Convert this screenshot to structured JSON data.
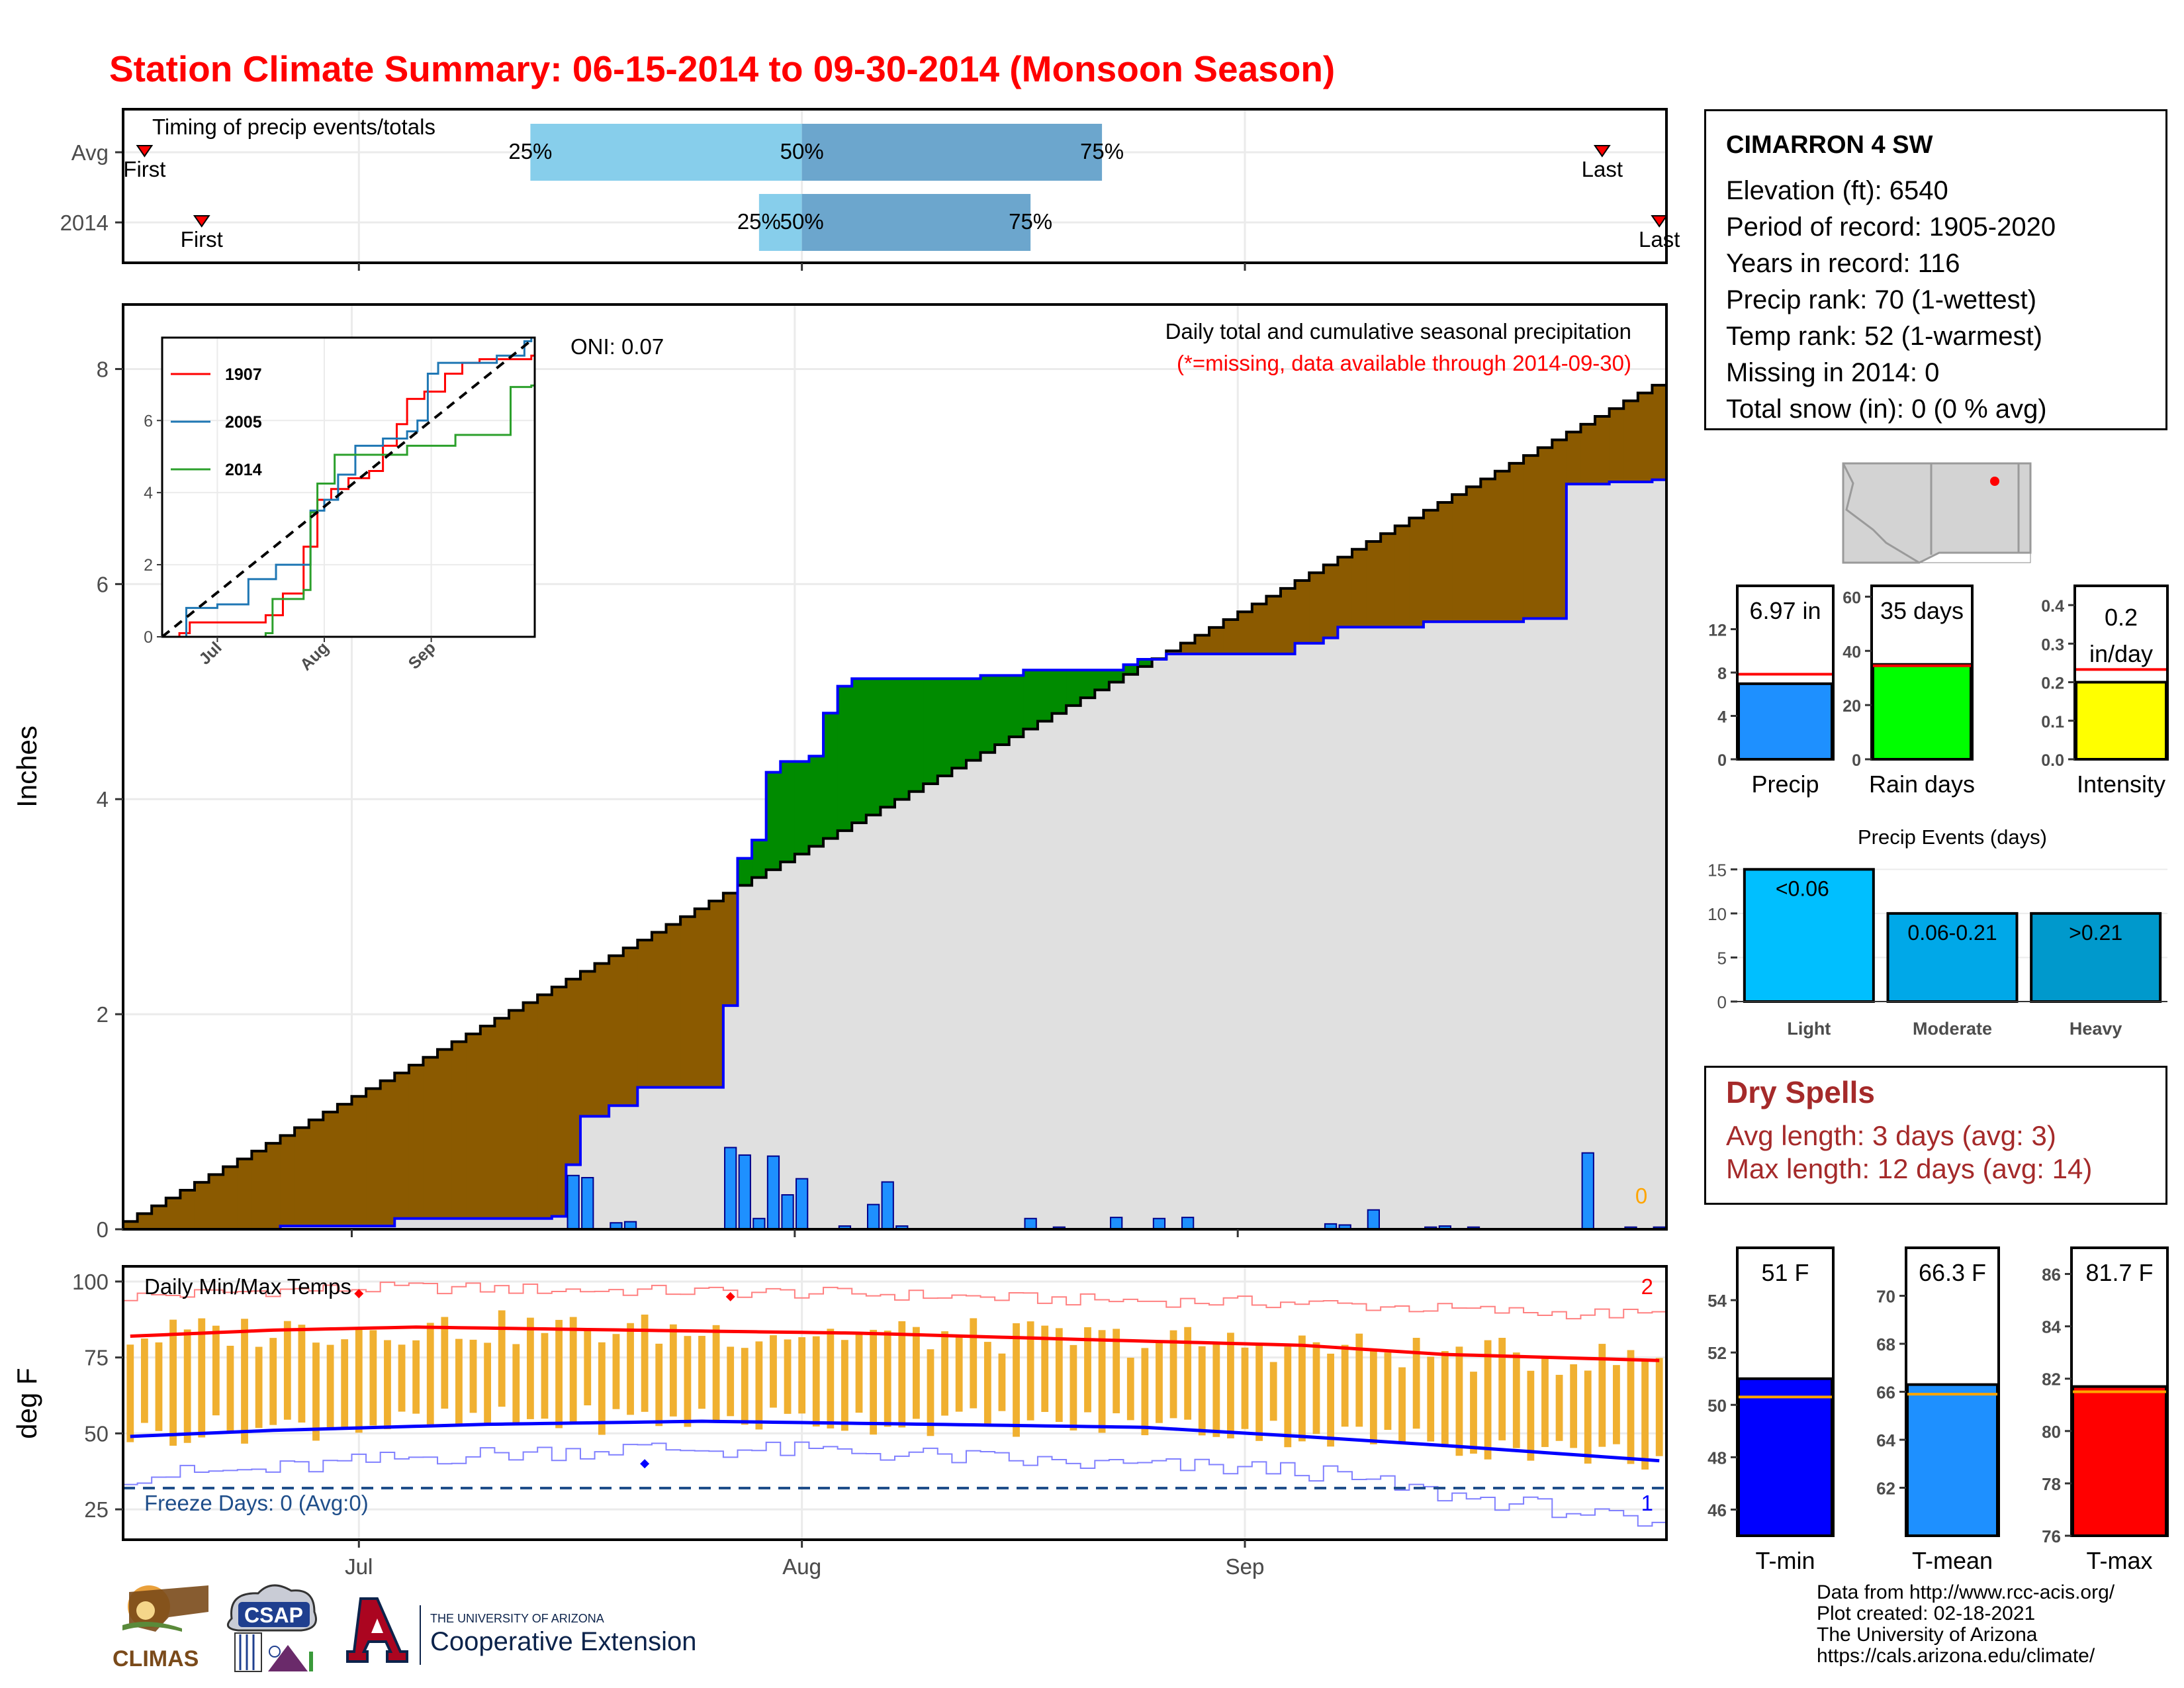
{
  "title": "Station Climate Summary: 06-15-2014 to 09-30-2014 (Monsoon Season)",
  "station": {
    "name": "CIMARRON 4 SW",
    "lines": [
      "Elevation (ft): 6540",
      "Period of record: 1905-2020",
      "Years in record: 116",
      "Precip rank: 70 (1-wettest)",
      "Temp rank: 52 (1-warmest)",
      "Missing in 2014: 0",
      "Total snow (in): 0 (0 % avg)"
    ]
  },
  "dry_spells": {
    "title": "Dry Spells",
    "avg": "Avg length: 3 days (avg: 3)",
    "max": "Max length: 12 days (avg: 14)"
  },
  "credits": [
    "Data from http://www.rcc-acis.org/",
    "Plot created: 02-18-2021",
    "The University of Arizona",
    "https://cals.arizona.edu/climate/"
  ],
  "logos": {
    "climas": "CLIMAS",
    "csap": "CSAP",
    "ua_small": "THE UNIVERSITY OF ARIZONA",
    "ua_ext": "Cooperative Extension"
  },
  "colors": {
    "deficit": "#8B5A00",
    "surplus": "#008B00",
    "bar": "#1E90FF",
    "light_blue": "#87CEEB",
    "mid_blue": "#6CA6CD",
    "temp_bar": "#F0B030",
    "tmax": "#FF0000",
    "tmin": "#0000FF"
  },
  "chart_data": [
    {
      "id": "timing",
      "type": "bar",
      "title": "Timing of precip events/totals",
      "rows": [
        "Avg",
        "2014"
      ],
      "x_range": [
        "06-15",
        "09-30"
      ],
      "avg": {
        "first": "06-16",
        "last": "09-26",
        "p25": "07-13",
        "p50": "08-01",
        "p75": "08-22"
      },
      "y2014": {
        "first": "06-20",
        "last": "09-30",
        "p25": "07-29",
        "p50": "08-01",
        "p75": "08-17"
      },
      "labels": {
        "first": "First",
        "last": "Last",
        "p25": "25%",
        "p50": "50%",
        "p75": "75%"
      }
    },
    {
      "id": "cumulative",
      "type": "area",
      "ylabel": "Inches",
      "ylim": [
        0,
        8.6
      ],
      "yticks": [
        0,
        2,
        4,
        6,
        8
      ],
      "xticks": [
        "Jul",
        "Aug",
        "Sep"
      ],
      "xtick_dates": [
        "07-01",
        "08-01",
        "09-01"
      ],
      "annotation_title": "Daily total and cumulative seasonal precipitation",
      "annotation_missing": "(*=missing, data available through 2014-09-30)",
      "oni": "ONI: 0.07",
      "missing_count": "0",
      "avg_final": 7.85,
      "obs_cumulative_keypoints": [
        [
          "06-15",
          0
        ],
        [
          "06-26",
          0.03
        ],
        [
          "07-04",
          0.1
        ],
        [
          "07-15",
          0.12
        ],
        [
          "07-16",
          0.6
        ],
        [
          "07-17",
          1.05
        ],
        [
          "07-19",
          1.15
        ],
        [
          "07-21",
          1.32
        ],
        [
          "07-26",
          1.32
        ],
        [
          "07-27",
          2.08
        ],
        [
          "07-28",
          3.45
        ],
        [
          "07-29",
          3.62
        ],
        [
          "07-30",
          4.25
        ],
        [
          "07-31",
          4.35
        ],
        [
          "08-02",
          4.4
        ],
        [
          "08-03",
          4.8
        ],
        [
          "08-04",
          5.05
        ],
        [
          "08-05",
          5.12
        ],
        [
          "08-14",
          5.15
        ],
        [
          "08-17",
          5.2
        ],
        [
          "08-24",
          5.25
        ],
        [
          "08-25",
          5.3
        ],
        [
          "08-27",
          5.35
        ],
        [
          "09-05",
          5.45
        ],
        [
          "09-07",
          5.5
        ],
        [
          "09-08",
          5.6
        ],
        [
          "09-14",
          5.65
        ],
        [
          "09-21",
          5.68
        ],
        [
          "09-24",
          6.93
        ],
        [
          "09-27",
          6.95
        ],
        [
          "09-30",
          6.97
        ]
      ],
      "daily_precip": [
        [
          "07-16",
          0.5
        ],
        [
          "07-17",
          0.48
        ],
        [
          "07-19",
          0.06
        ],
        [
          "07-20",
          0.07
        ],
        [
          "07-27",
          0.76
        ],
        [
          "07-28",
          0.69
        ],
        [
          "07-29",
          0.1
        ],
        [
          "07-30",
          0.68
        ],
        [
          "07-31",
          0.32
        ],
        [
          "08-01",
          0.47
        ],
        [
          "08-04",
          0.03
        ],
        [
          "08-06",
          0.23
        ],
        [
          "08-07",
          0.44
        ],
        [
          "08-08",
          0.03
        ],
        [
          "08-17",
          0.1
        ],
        [
          "08-19",
          0.02
        ],
        [
          "08-23",
          0.11
        ],
        [
          "08-26",
          0.1
        ],
        [
          "08-28",
          0.11
        ],
        [
          "09-07",
          0.05
        ],
        [
          "09-08",
          0.04
        ],
        [
          "09-10",
          0.18
        ],
        [
          "09-14",
          0.02
        ],
        [
          "09-15",
          0.03
        ],
        [
          "09-17",
          0.02
        ],
        [
          "09-25",
          0.71
        ],
        [
          "09-28",
          0.02
        ],
        [
          "09-30",
          0.02
        ]
      ]
    },
    {
      "id": "inset",
      "type": "line",
      "ylim": [
        0,
        8.3
      ],
      "yticks": [
        0,
        2,
        4,
        6
      ],
      "xticks": [
        "Jul",
        "Aug",
        "Sep"
      ],
      "legend": [
        "1907",
        "2005",
        "2014"
      ],
      "series": [
        {
          "name": "1907",
          "color": "#FF0000",
          "keypoints": [
            [
              "06-15",
              0
            ],
            [
              "06-20",
              0.1
            ],
            [
              "06-23",
              0.4
            ],
            [
              "07-15",
              0.6
            ],
            [
              "07-20",
              1.2
            ],
            [
              "07-26",
              2.5
            ],
            [
              "07-30",
              3.8
            ],
            [
              "08-03",
              4.1
            ],
            [
              "08-08",
              4.4
            ],
            [
              "08-14",
              4.6
            ],
            [
              "08-18",
              5.3
            ],
            [
              "08-22",
              5.9
            ],
            [
              "08-25",
              6.6
            ],
            [
              "08-30",
              6.8
            ],
            [
              "09-05",
              7.3
            ],
            [
              "09-10",
              7.6
            ],
            [
              "09-15",
              7.7
            ],
            [
              "09-30",
              7.8
            ]
          ]
        },
        {
          "name": "2005",
          "color": "#1F77B4",
          "keypoints": [
            [
              "06-15",
              0
            ],
            [
              "06-22",
              0.8
            ],
            [
              "07-01",
              0.9
            ],
            [
              "07-08",
              0.9
            ],
            [
              "07-10",
              1.6
            ],
            [
              "07-16",
              1.6
            ],
            [
              "07-18",
              2.0
            ],
            [
              "07-26",
              2.0
            ],
            [
              "07-28",
              3.5
            ],
            [
              "08-01",
              3.8
            ],
            [
              "08-05",
              4.5
            ],
            [
              "08-10",
              5.3
            ],
            [
              "08-18",
              5.5
            ],
            [
              "08-25",
              5.7
            ],
            [
              "08-28",
              6.0
            ],
            [
              "08-31",
              7.3
            ],
            [
              "09-03",
              7.6
            ],
            [
              "09-20",
              7.8
            ],
            [
              "09-28",
              8.2
            ],
            [
              "09-30",
              8.3
            ]
          ]
        },
        {
          "name": "2014",
          "color": "#2CA02C",
          "keypoints": [
            [
              "06-15",
              0
            ],
            [
              "07-15",
              0.1
            ],
            [
              "07-17",
              1.05
            ],
            [
              "07-26",
              1.3
            ],
            [
              "07-28",
              3.45
            ],
            [
              "07-30",
              4.25
            ],
            [
              "08-04",
              5.05
            ],
            [
              "08-25",
              5.3
            ],
            [
              "09-08",
              5.6
            ],
            [
              "09-24",
              6.93
            ],
            [
              "09-30",
              6.97
            ]
          ]
        }
      ],
      "avg_final": 8.3
    },
    {
      "id": "summary-precip",
      "type": "bar",
      "xlabel": "Precip",
      "label": "6.97 in",
      "value": 6.97,
      "avg": 7.85,
      "ylim": [
        0,
        16
      ],
      "yticks": [
        0,
        4,
        8,
        12
      ]
    },
    {
      "id": "summary-raindays",
      "type": "bar",
      "xlabel": "Rain days",
      "label": "35 days",
      "value": 35,
      "avg": 34.5,
      "ylim": [
        0,
        64
      ],
      "yticks": [
        0,
        20,
        40,
        60
      ]
    },
    {
      "id": "summary-intensity",
      "type": "bar",
      "xlabel": "Intensity",
      "label": "0.2 in/day",
      "label_lines": [
        "0.2",
        "in/day"
      ],
      "value": 0.2,
      "avg": 0.233,
      "ylim": [
        0,
        0.45
      ],
      "yticks": [
        0.0,
        0.1,
        0.2,
        0.3,
        0.4
      ],
      "ytick_labels": [
        "0.0",
        "0.1",
        "0.2",
        "0.3",
        "0.4"
      ]
    },
    {
      "id": "precip-events",
      "type": "bar",
      "title": "Precip Events (days)",
      "categories": [
        "Light",
        "Moderate",
        "Heavy"
      ],
      "bar_labels": [
        "<0.06",
        "0.06-0.21",
        ">0.21"
      ],
      "values": [
        15,
        10,
        10
      ],
      "ylim": [
        0,
        16
      ],
      "yticks": [
        0,
        5,
        10,
        15
      ]
    },
    {
      "id": "temps",
      "type": "line",
      "ylabel": "deg F",
      "ylim": [
        15,
        105
      ],
      "yticks": [
        25,
        50,
        75,
        100
      ],
      "xticks": [
        "Jul",
        "Aug",
        "Sep"
      ],
      "title": "Daily Min/Max Temps",
      "freeze": "Freeze Days: 0 (Avg:0)",
      "count_max": "2",
      "count_min": "1",
      "freeze_line": 32,
      "avg_max_keypoints": [
        [
          "06-15",
          82
        ],
        [
          "06-25",
          84
        ],
        [
          "07-05",
          85
        ],
        [
          "07-20",
          84
        ],
        [
          "08-05",
          83
        ],
        [
          "08-20",
          81
        ],
        [
          "09-05",
          79
        ],
        [
          "09-15",
          76
        ],
        [
          "09-30",
          74
        ]
      ],
      "avg_min_keypoints": [
        [
          "06-15",
          49
        ],
        [
          "06-25",
          51
        ],
        [
          "07-10",
          53
        ],
        [
          "07-25",
          54
        ],
        [
          "08-10",
          53
        ],
        [
          "08-25",
          52
        ],
        [
          "09-05",
          49
        ],
        [
          "09-15",
          46
        ],
        [
          "09-30",
          41
        ]
      ],
      "record_max_keypoints": [
        [
          "06-15",
          95
        ],
        [
          "06-25",
          97
        ],
        [
          "07-05",
          98
        ],
        [
          "07-20",
          97
        ],
        [
          "08-05",
          96
        ],
        [
          "08-20",
          94
        ],
        [
          "09-05",
          93
        ],
        [
          "09-20",
          90
        ],
        [
          "09-30",
          89
        ]
      ],
      "record_min_keypoints": [
        [
          "06-15",
          36
        ],
        [
          "06-25",
          38
        ],
        [
          "07-05",
          42
        ],
        [
          "07-20",
          45
        ],
        [
          "08-05",
          44
        ],
        [
          "08-20",
          40
        ],
        [
          "09-05",
          38
        ],
        [
          "09-15",
          30
        ],
        [
          "09-25",
          24
        ],
        [
          "09-30",
          18
        ]
      ],
      "record_markers": [
        [
          "07-01",
          96
        ],
        [
          "07-27",
          95
        ],
        [
          "07-21",
          40
        ]
      ]
    },
    {
      "id": "summary-tmin",
      "type": "bar",
      "xlabel": "T-min",
      "label": "51 F",
      "value": 51.0,
      "avg": 50.3,
      "ylim": [
        45,
        56
      ],
      "yticks": [
        46,
        48,
        50,
        52,
        54
      ]
    },
    {
      "id": "summary-tmean",
      "type": "bar",
      "xlabel": "T-mean",
      "label": "66.3 F",
      "value": 66.3,
      "avg": 65.9,
      "ylim": [
        60,
        72
      ],
      "yticks": [
        62,
        64,
        66,
        68,
        70
      ]
    },
    {
      "id": "summary-tmax",
      "type": "bar",
      "xlabel": "T-max",
      "label": "81.7 F",
      "value": 81.7,
      "avg": 81.5,
      "ylim": [
        76,
        87
      ],
      "yticks": [
        76,
        78,
        80,
        82,
        84,
        86
      ]
    }
  ]
}
